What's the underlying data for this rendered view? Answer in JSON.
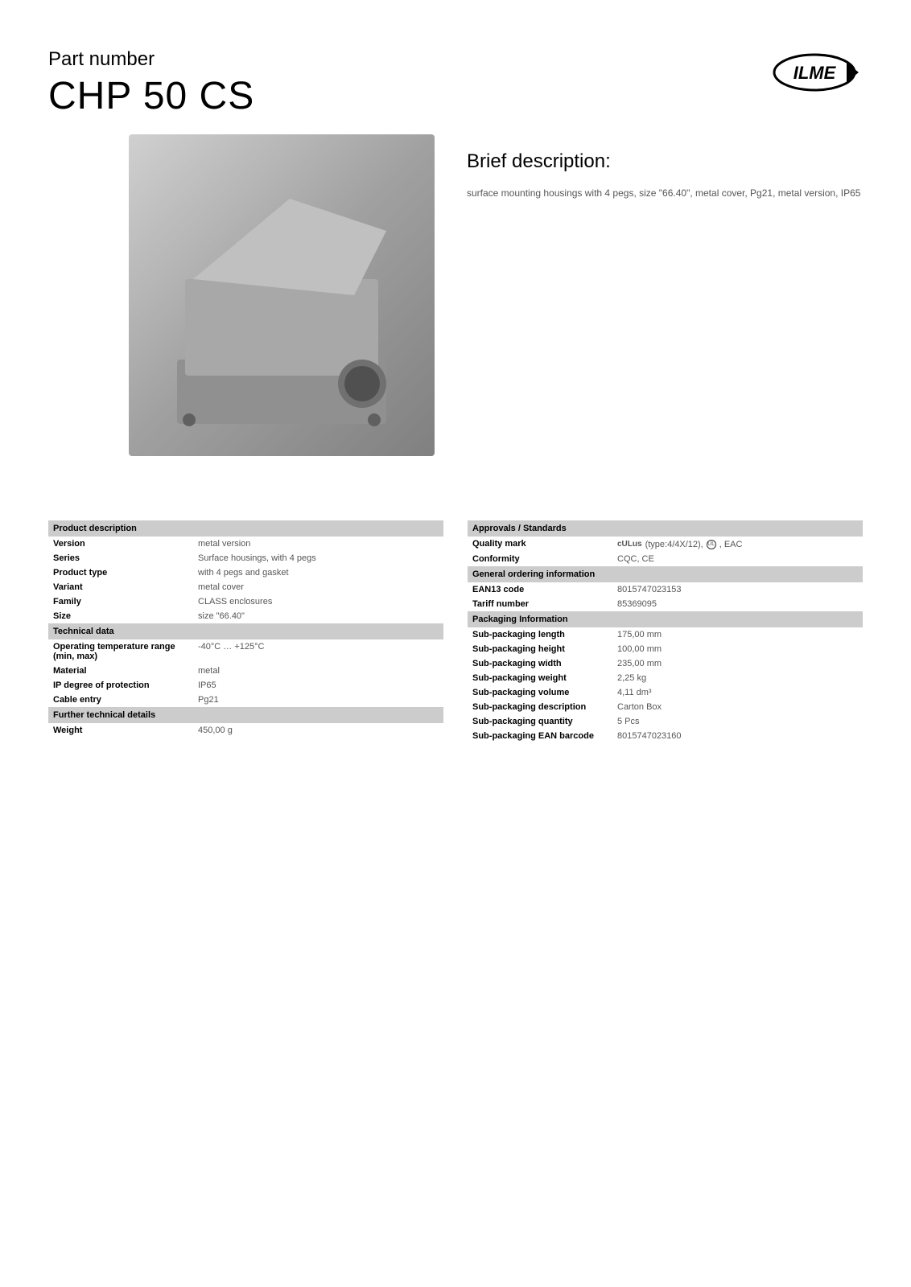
{
  "header": {
    "part_number_label": "Part number",
    "part_number_value": "CHP 50 CS",
    "logo_name": "ILME"
  },
  "brief": {
    "title": "Brief description:",
    "text": "surface mounting housings with 4 pegs, size \"66.40\", metal cover, Pg21, metal version, IP65"
  },
  "left_column": {
    "sections": [
      {
        "header": "Product description",
        "rows": [
          {
            "label": "Version",
            "value": "metal version"
          },
          {
            "label": "Series",
            "value": "Surface housings, with 4 pegs"
          },
          {
            "label": "Product type",
            "value": "with 4 pegs and gasket"
          },
          {
            "label": "Variant",
            "value": "metal cover"
          },
          {
            "label": "Family",
            "value": "CLASS enclosures"
          },
          {
            "label": "Size",
            "value": "size \"66.40\""
          }
        ]
      },
      {
        "header": "Technical data",
        "rows": [
          {
            "label": "Operating temperature range (min, max)",
            "value": "-40°C … +125°C"
          },
          {
            "label": "Material",
            "value": "metal"
          },
          {
            "label": "IP degree of protection",
            "value": "IP65"
          },
          {
            "label": "Cable entry",
            "value": "Pg21"
          }
        ]
      },
      {
        "header": "Further technical details",
        "rows": [
          {
            "label": "Weight",
            "value": "450,00 g"
          }
        ]
      }
    ]
  },
  "right_column": {
    "sections": [
      {
        "header": "Approvals / Standards",
        "rows": [
          {
            "label": "Quality mark",
            "value": "(type:4/4X/12), , EAC",
            "has_icons": true
          },
          {
            "label": "Conformity",
            "value": "CQC, CE"
          }
        ]
      },
      {
        "header": "General ordering information",
        "rows": [
          {
            "label": "EAN13 code",
            "value": "8015747023153"
          },
          {
            "label": "Tariff number",
            "value": "85369095"
          }
        ]
      },
      {
        "header": "Packaging Information",
        "rows": [
          {
            "label": "Sub-packaging length",
            "value": "175,00 mm"
          },
          {
            "label": "Sub-packaging height",
            "value": "100,00 mm"
          },
          {
            "label": "Sub-packaging width",
            "value": "235,00 mm"
          },
          {
            "label": "Sub-packaging weight",
            "value": "2,25 kg"
          },
          {
            "label": "Sub-packaging volume",
            "value": "4,11 dm³"
          },
          {
            "label": "Sub-packaging description",
            "value": "Carton Box"
          },
          {
            "label": "Sub-packaging quantity",
            "value": "5 Pcs"
          },
          {
            "label": "Sub-packaging EAN barcode",
            "value": "8015747023160"
          }
        ]
      }
    ]
  },
  "colors": {
    "section_header_bg": "#cccccc",
    "text_primary": "#000000",
    "text_secondary": "#555555",
    "background": "#ffffff"
  }
}
